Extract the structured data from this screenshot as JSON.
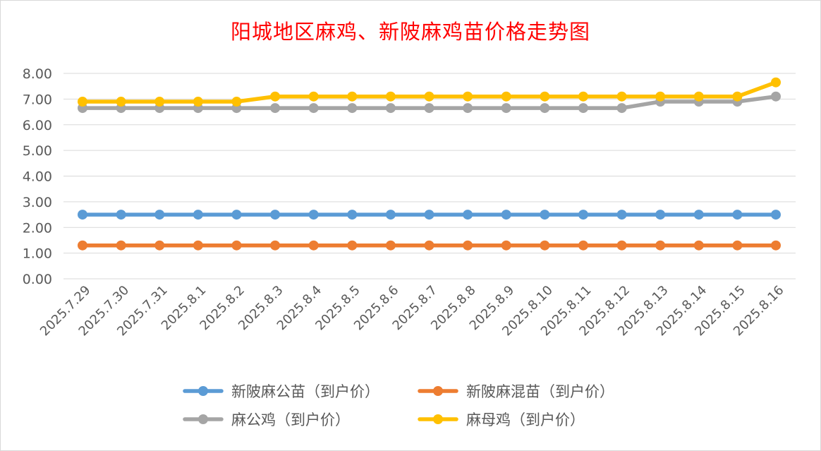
{
  "chart_data": {
    "type": "line",
    "title": "阳城地区麻鸡、新陂麻鸡苗价格走势图",
    "xlabel": "",
    "ylabel": "",
    "ylim": [
      0,
      8
    ],
    "yticks": [
      "0.00",
      "1.00",
      "2.00",
      "3.00",
      "4.00",
      "5.00",
      "6.00",
      "7.00",
      "8.00"
    ],
    "grid": true,
    "legend_position": "bottom",
    "categories": [
      "2025.7.29",
      "2025.7.30",
      "2025.7.31",
      "2025.8.1",
      "2025.8.2",
      "2025.8.3",
      "2025.8.4",
      "2025.8.5",
      "2025.8.6",
      "2025.8.7",
      "2025.8.8",
      "2025.8.9",
      "2025.8.10",
      "2025.8.11",
      "2025.8.12",
      "2025.8.13",
      "2025.8.14",
      "2025.8.15",
      "2025.8.16"
    ],
    "series": [
      {
        "name": "新陂麻公苗（到户价）",
        "color": "#5b9bd5",
        "values": [
          2.5,
          2.5,
          2.5,
          2.5,
          2.5,
          2.5,
          2.5,
          2.5,
          2.5,
          2.5,
          2.5,
          2.5,
          2.5,
          2.5,
          2.5,
          2.5,
          2.5,
          2.5,
          2.5
        ]
      },
      {
        "name": "新陂麻混苗（到户价）",
        "color": "#ed7d31",
        "values": [
          1.3,
          1.3,
          1.3,
          1.3,
          1.3,
          1.3,
          1.3,
          1.3,
          1.3,
          1.3,
          1.3,
          1.3,
          1.3,
          1.3,
          1.3,
          1.3,
          1.3,
          1.3,
          1.3
        ]
      },
      {
        "name": "麻公鸡（到户价）",
        "color": "#a5a5a5",
        "values": [
          6.65,
          6.65,
          6.65,
          6.65,
          6.65,
          6.65,
          6.65,
          6.65,
          6.65,
          6.65,
          6.65,
          6.65,
          6.65,
          6.65,
          6.65,
          6.9,
          6.9,
          6.9,
          7.1
        ]
      },
      {
        "name": "麻母鸡（到户价）",
        "color": "#ffc000",
        "values": [
          6.9,
          6.9,
          6.9,
          6.9,
          6.9,
          7.1,
          7.1,
          7.1,
          7.1,
          7.1,
          7.1,
          7.1,
          7.1,
          7.1,
          7.1,
          7.1,
          7.1,
          7.1,
          7.65
        ]
      }
    ]
  }
}
